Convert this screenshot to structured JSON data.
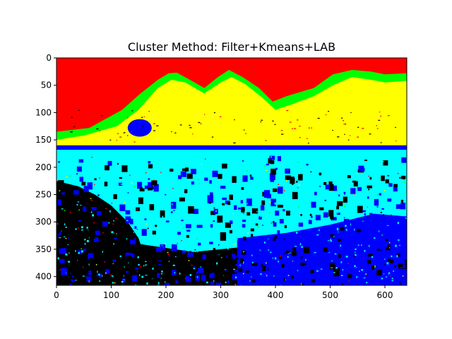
{
  "chart_data": {
    "type": "heatmap",
    "title": "Cluster Method: Filter+Kmeans+LAB",
    "xlabel": "",
    "ylabel": "",
    "xlim": [
      0,
      640
    ],
    "ylim": [
      416,
      0
    ],
    "x_ticks": [
      "0",
      "100",
      "200",
      "300",
      "400",
      "500",
      "600"
    ],
    "y_ticks": [
      "0",
      "50",
      "100",
      "150",
      "200",
      "250",
      "300",
      "350",
      "400"
    ],
    "grid": false,
    "image_width": 640,
    "image_height": 416,
    "cluster_colors": {
      "sky": "#ff0000",
      "ridge": "#00ff00",
      "hills": "#ffff00",
      "water": "#00ffff",
      "vegetation": "#0000ff",
      "shadow": "#000000"
    }
  }
}
